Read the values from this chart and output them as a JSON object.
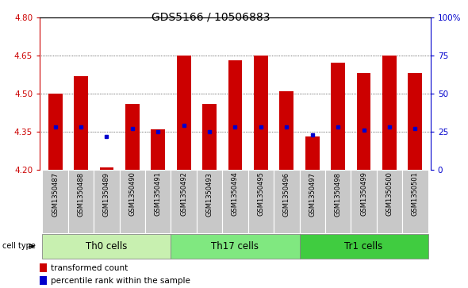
{
  "title": "GDS5166 / 10506883",
  "samples": [
    "GSM1350487",
    "GSM1350488",
    "GSM1350489",
    "GSM1350490",
    "GSM1350491",
    "GSM1350492",
    "GSM1350493",
    "GSM1350494",
    "GSM1350495",
    "GSM1350496",
    "GSM1350497",
    "GSM1350498",
    "GSM1350499",
    "GSM1350500",
    "GSM1350501"
  ],
  "transformed_count": [
    4.5,
    4.57,
    4.21,
    4.46,
    4.36,
    4.65,
    4.46,
    4.63,
    4.65,
    4.51,
    4.33,
    4.62,
    4.58,
    4.65,
    4.58
  ],
  "percentile_rank_pct": [
    28,
    28,
    22,
    27,
    25,
    29,
    25,
    28,
    28,
    28,
    23,
    28,
    26,
    28,
    27
  ],
  "groups": [
    {
      "name": "Th0 cells",
      "start": 0,
      "end": 5,
      "color": "#c8f0b0"
    },
    {
      "name": "Th17 cells",
      "start": 5,
      "end": 10,
      "color": "#80e880"
    },
    {
      "name": "Tr1 cells",
      "start": 10,
      "end": 15,
      "color": "#40cc40"
    }
  ],
  "ylim_left": [
    4.2,
    4.8
  ],
  "yticks_left": [
    4.2,
    4.35,
    4.5,
    4.65,
    4.8
  ],
  "ylim_right": [
    0,
    100
  ],
  "yticks_right": [
    0,
    25,
    50,
    75,
    100
  ],
  "bar_color": "#cc0000",
  "dot_color": "#0000cc",
  "bar_width": 0.55,
  "plot_bg_color": "#ffffff",
  "title_fontsize": 10,
  "tick_fontsize": 7.5,
  "sample_fontsize": 6,
  "group_label_fontsize": 8.5,
  "legend_fontsize": 7.5
}
